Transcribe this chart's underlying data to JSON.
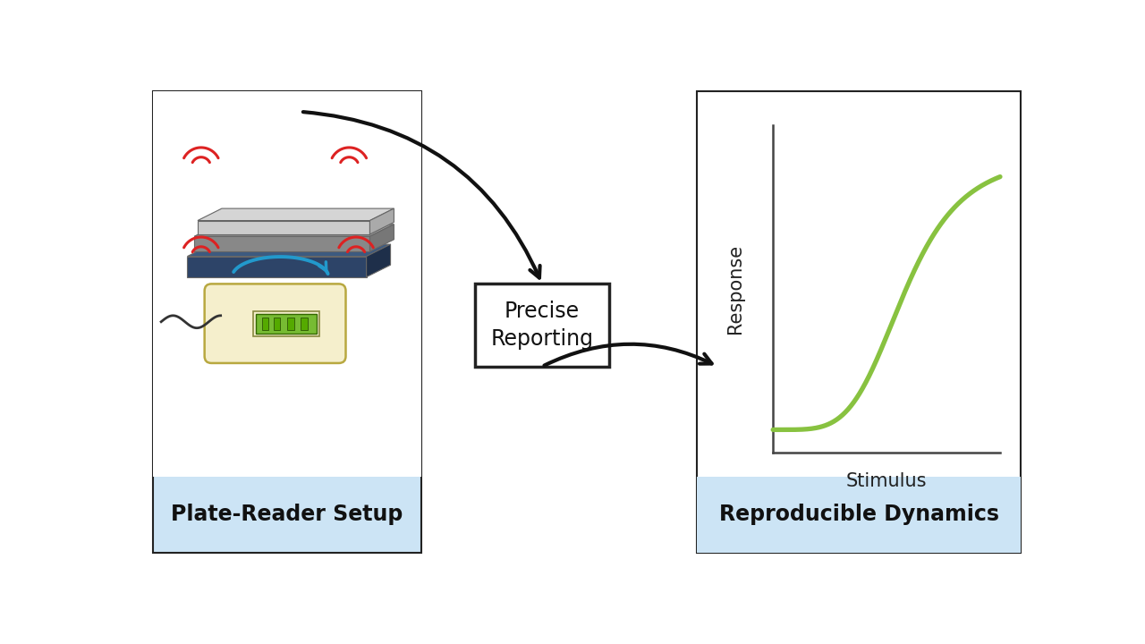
{
  "bg_color": "#ffffff",
  "light_blue_bg": "#cce4f5",
  "plate_reader_label": "Plate-Reader Setup",
  "precise_reporting_label": "Precise\nReporting",
  "reproducible_label": "Reproducible Dynamics",
  "response_label": "Response",
  "stimulus_label": "Stimulus",
  "sigmoid_color": "#88c240",
  "arrow_color": "#111111",
  "red_wave_color": "#dd2222",
  "blue_arrow_color": "#2299cc",
  "box_border_color": "#222222",
  "label_fontsize": 17,
  "axis_label_fontsize": 15
}
